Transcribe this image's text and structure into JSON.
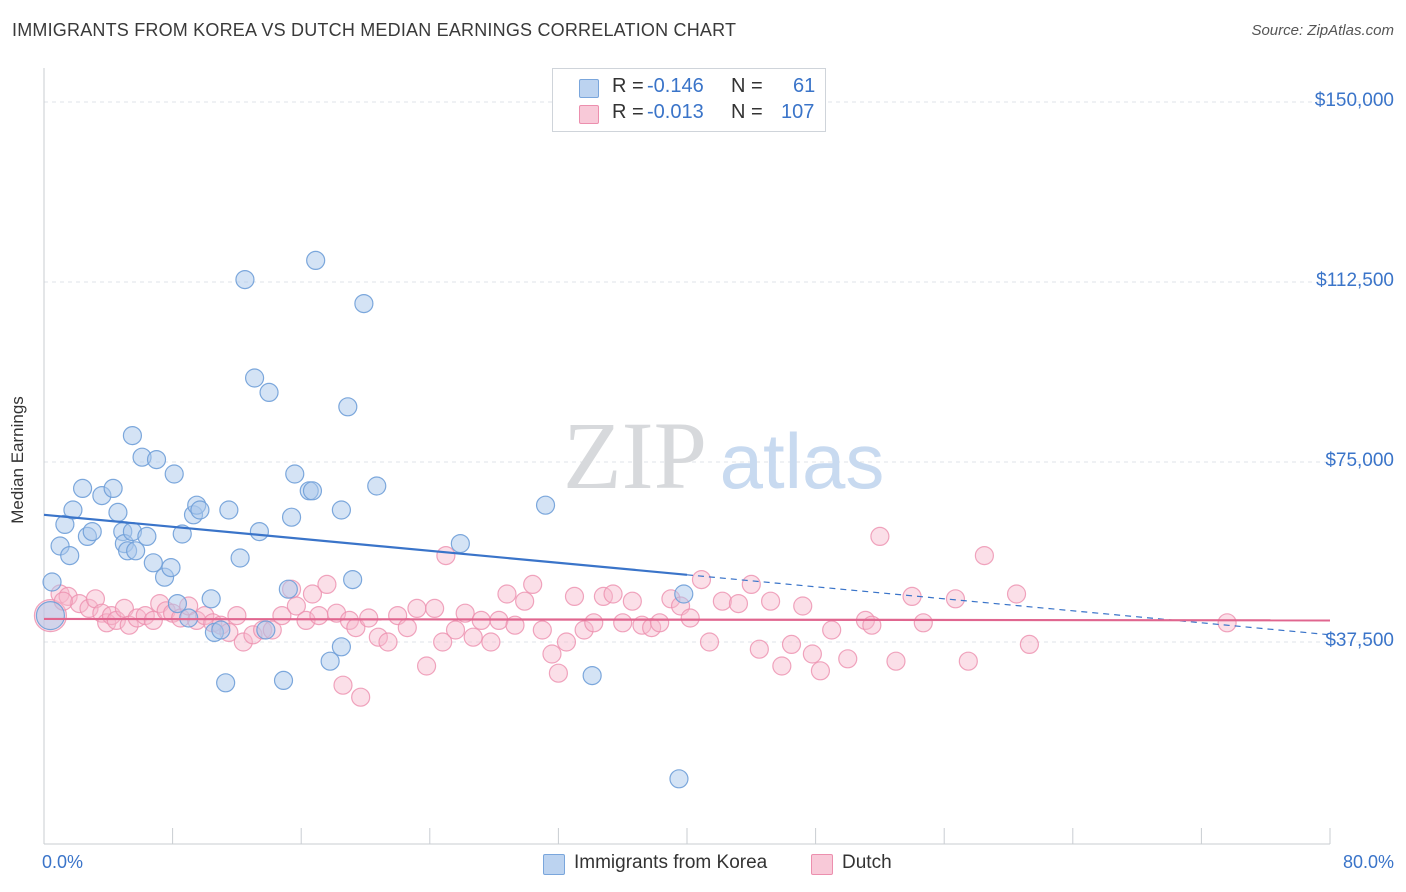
{
  "title": "IMMIGRANTS FROM KOREA VS DUTCH MEDIAN EARNINGS CORRELATION CHART",
  "source": "Source: ZipAtlas.com",
  "watermark": {
    "zip": "ZIP",
    "atlas": "atlas"
  },
  "colors": {
    "korea_fill": "#a9c7ec",
    "korea_stroke": "#6f9fd8",
    "korea_line": "#3a74c9",
    "dutch_fill": "#f6b8cc",
    "dutch_stroke": "#ec8fae",
    "dutch_line": "#e0668f",
    "axis_text": "#3a74c9",
    "grid": "#dfe3e8"
  },
  "legend": {
    "rows": [
      {
        "r_label": "R =",
        "r_value": "-0.146",
        "n_label": "N =",
        "n_value": "61"
      },
      {
        "r_label": "R =",
        "r_value": "-0.013",
        "n_label": "N =",
        "n_value": "107"
      }
    ]
  },
  "bottom_legend": [
    "Immigrants from Korea",
    "Dutch"
  ],
  "chart_data": {
    "type": "scatter",
    "title": "IMMIGRANTS FROM KOREA VS DUTCH MEDIAN EARNINGS CORRELATION CHART",
    "xlabel": "",
    "ylabel": "Median Earnings",
    "xlim": [
      0,
      80
    ],
    "ylim": [
      0,
      155000
    ],
    "x_tick_labels": [
      "0.0%",
      "80.0%"
    ],
    "y_ticks": [
      {
        "value": 37500,
        "label": "$37,500"
      },
      {
        "value": 75000,
        "label": "$75,000"
      },
      {
        "value": 112500,
        "label": "$112,500"
      },
      {
        "value": 150000,
        "label": "$150,000"
      }
    ],
    "grid": true,
    "legend_position": "top-center",
    "series": [
      {
        "name": "Immigrants from Korea",
        "r": -0.146,
        "n": 61,
        "trend": {
          "x": [
            0,
            40
          ],
          "y": [
            64000,
            51500
          ]
        },
        "trend_dashed": {
          "x": [
            40,
            80
          ],
          "y": [
            51500,
            39000
          ]
        },
        "points": [
          [
            0.5,
            50000
          ],
          [
            1,
            57500
          ],
          [
            1.3,
            62000
          ],
          [
            1.6,
            55500
          ],
          [
            1.8,
            65000
          ],
          [
            2.4,
            69500
          ],
          [
            2.7,
            59500
          ],
          [
            3,
            60500
          ],
          [
            3.6,
            68000
          ],
          [
            4.3,
            69500
          ],
          [
            4.6,
            64500
          ],
          [
            4.9,
            60500
          ],
          [
            5.0,
            58000
          ],
          [
            5.2,
            56500
          ],
          [
            5.5,
            60500
          ],
          [
            5.7,
            56500
          ],
          [
            5.5,
            80500
          ],
          [
            6.1,
            76000
          ],
          [
            6.4,
            59500
          ],
          [
            6.8,
            54000
          ],
          [
            7.0,
            75500
          ],
          [
            7.5,
            51000
          ],
          [
            7.9,
            53000
          ],
          [
            8.1,
            72500
          ],
          [
            8.3,
            45500
          ],
          [
            8.6,
            60000
          ],
          [
            9.0,
            42500
          ],
          [
            9.3,
            64000
          ],
          [
            9.5,
            66000
          ],
          [
            9.7,
            65000
          ],
          [
            10.4,
            46500
          ],
          [
            10.6,
            39500
          ],
          [
            11.0,
            40000
          ],
          [
            11.3,
            29000
          ],
          [
            11.5,
            65000
          ],
          [
            12.2,
            55000
          ],
          [
            12.5,
            113000
          ],
          [
            13.1,
            92500
          ],
          [
            13.4,
            60500
          ],
          [
            13.8,
            40000
          ],
          [
            14.0,
            89500
          ],
          [
            14.9,
            29500
          ],
          [
            15.2,
            48500
          ],
          [
            15.4,
            63500
          ],
          [
            15.6,
            72500
          ],
          [
            16.5,
            69000
          ],
          [
            16.7,
            69000
          ],
          [
            16.9,
            117000
          ],
          [
            17.8,
            33500
          ],
          [
            18.5,
            36500
          ],
          [
            18.5,
            65000
          ],
          [
            18.9,
            86500
          ],
          [
            19.2,
            50500
          ],
          [
            19.9,
            108000
          ],
          [
            20.7,
            70000
          ],
          [
            25.9,
            58000
          ],
          [
            31.2,
            66000
          ],
          [
            34.1,
            30500
          ],
          [
            39.5,
            9000
          ],
          [
            39.8,
            47500
          ],
          [
            0.4,
            43000
          ]
        ]
      },
      {
        "name": "Dutch",
        "r": -0.013,
        "n": 107,
        "trend": {
          "x": [
            0,
            80
          ],
          "y": [
            42300,
            42000
          ]
        },
        "points": [
          [
            0.4,
            43000
          ],
          [
            1.0,
            47500
          ],
          [
            1.5,
            47000
          ],
          [
            2.2,
            45500
          ],
          [
            2.8,
            44500
          ],
          [
            3.2,
            46500
          ],
          [
            3.6,
            43500
          ],
          [
            3.9,
            41500
          ],
          [
            4.2,
            43000
          ],
          [
            4.5,
            42000
          ],
          [
            5.0,
            44500
          ],
          [
            5.3,
            41000
          ],
          [
            5.8,
            42500
          ],
          [
            6.3,
            43000
          ],
          [
            6.8,
            42000
          ],
          [
            7.2,
            45500
          ],
          [
            7.6,
            44000
          ],
          [
            8.0,
            43500
          ],
          [
            8.5,
            42500
          ],
          [
            9.0,
            45000
          ],
          [
            9.5,
            42000
          ],
          [
            10.0,
            43000
          ],
          [
            10.5,
            41500
          ],
          [
            11.0,
            41000
          ],
          [
            11.5,
            39500
          ],
          [
            12.0,
            43000
          ],
          [
            12.4,
            37500
          ],
          [
            13.0,
            39000
          ],
          [
            13.6,
            40000
          ],
          [
            14.2,
            40000
          ],
          [
            14.8,
            43000
          ],
          [
            15.4,
            48500
          ],
          [
            15.7,
            45000
          ],
          [
            16.3,
            42000
          ],
          [
            16.7,
            47500
          ],
          [
            17.1,
            43000
          ],
          [
            17.6,
            49500
          ],
          [
            18.2,
            43500
          ],
          [
            18.6,
            28500
          ],
          [
            19.0,
            42000
          ],
          [
            19.4,
            40500
          ],
          [
            19.7,
            26000
          ],
          [
            20.2,
            42500
          ],
          [
            20.8,
            38500
          ],
          [
            21.4,
            37500
          ],
          [
            22.0,
            43000
          ],
          [
            22.6,
            40500
          ],
          [
            23.2,
            44500
          ],
          [
            23.8,
            32500
          ],
          [
            24.3,
            44500
          ],
          [
            24.8,
            37500
          ],
          [
            25.0,
            55500
          ],
          [
            25.6,
            40000
          ],
          [
            26.2,
            43500
          ],
          [
            26.7,
            38500
          ],
          [
            27.2,
            42000
          ],
          [
            27.8,
            37500
          ],
          [
            28.3,
            42000
          ],
          [
            28.8,
            47500
          ],
          [
            29.3,
            41000
          ],
          [
            29.9,
            46000
          ],
          [
            30.4,
            49500
          ],
          [
            31.0,
            40000
          ],
          [
            31.6,
            35000
          ],
          [
            32.0,
            31000
          ],
          [
            32.5,
            37500
          ],
          [
            33.0,
            47000
          ],
          [
            33.6,
            40000
          ],
          [
            34.2,
            41500
          ],
          [
            34.8,
            47000
          ],
          [
            35.4,
            47500
          ],
          [
            36.0,
            41500
          ],
          [
            36.6,
            46000
          ],
          [
            37.2,
            41000
          ],
          [
            37.8,
            40500
          ],
          [
            38.3,
            41500
          ],
          [
            39.0,
            46500
          ],
          [
            39.6,
            45000
          ],
          [
            40.2,
            42500
          ],
          [
            40.9,
            50500
          ],
          [
            41.4,
            37500
          ],
          [
            42.2,
            46000
          ],
          [
            43.2,
            45500
          ],
          [
            44.0,
            49500
          ],
          [
            44.5,
            36000
          ],
          [
            45.2,
            46000
          ],
          [
            45.9,
            32500
          ],
          [
            46.5,
            37000
          ],
          [
            47.2,
            45000
          ],
          [
            47.8,
            35000
          ],
          [
            48.3,
            31500
          ],
          [
            49.0,
            40000
          ],
          [
            50.0,
            34000
          ],
          [
            51.1,
            42000
          ],
          [
            51.5,
            41000
          ],
          [
            52.0,
            59500
          ],
          [
            53.0,
            33500
          ],
          [
            54.0,
            47000
          ],
          [
            54.7,
            41500
          ],
          [
            56.7,
            46500
          ],
          [
            57.5,
            33500
          ],
          [
            58.5,
            55500
          ],
          [
            60.5,
            47500
          ],
          [
            61.3,
            37000
          ],
          [
            73.6,
            41500
          ],
          [
            1.2,
            46000
          ]
        ]
      }
    ]
  }
}
